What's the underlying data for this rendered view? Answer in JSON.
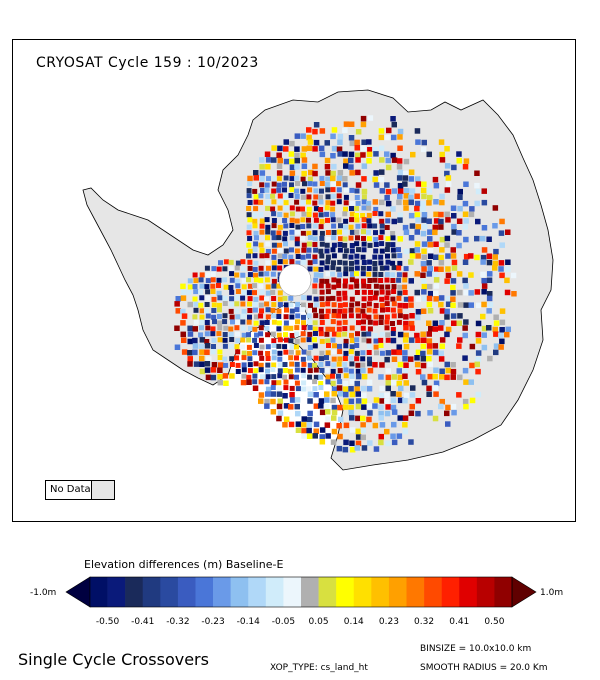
{
  "map": {
    "title": "CRYOSAT Cycle 159 : 10/2023",
    "no_data_label": "No Data",
    "no_data_color": "#e6e6e6"
  },
  "colorbar": {
    "title": "Elevation differences (m) Baseline-E",
    "min_label": "-1.0m",
    "max_label": "1.0m",
    "ticks": [
      "-0.50",
      "-0.41",
      "-0.32",
      "-0.23",
      "-0.14",
      "-0.05",
      "0.05",
      "0.14",
      "0.23",
      "0.32",
      "0.41",
      "0.50"
    ],
    "colors": [
      "#000f66",
      "#0a1a7a",
      "#1a2a5a",
      "#203a80",
      "#2a4aa0",
      "#3a5cc0",
      "#4a76d8",
      "#6a9ae8",
      "#8ec0f0",
      "#b0d8f8",
      "#d0ecfa",
      "#ecf6fc",
      "#b0b0b0",
      "#d8e040",
      "#ffff00",
      "#ffe000",
      "#ffc000",
      "#ffa000",
      "#ff7800",
      "#ff4a00",
      "#ff2000",
      "#e00000",
      "#b80000",
      "#900000"
    ],
    "left_cap_color": "#000040",
    "right_cap_color": "#600000"
  },
  "footer": {
    "main": "Single Cycle Crossovers",
    "xop_type": "XOP_TYPE: cs_land_ht",
    "binsize": "BINSIZE = 10.0x10.0 km",
    "smooth_radius": "SMOOTH RADIUS = 20.0 Km"
  }
}
